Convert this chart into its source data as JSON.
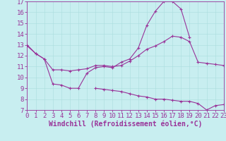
{
  "xlabel": "Windchill (Refroidissement éolien,°C)",
  "ylabel": "",
  "background_color": "#c8eef0",
  "line_color": "#993399",
  "xmin": 0,
  "xmax": 23,
  "ymin": 7,
  "ymax": 17,
  "line1_x": [
    0,
    1,
    2,
    3,
    4,
    5,
    6,
    7,
    8,
    9,
    10,
    11,
    12,
    13,
    14,
    15,
    16,
    17,
    18,
    19,
    20,
    21,
    22,
    23
  ],
  "line1_y": [
    13.0,
    12.2,
    11.7,
    10.7,
    10.7,
    10.6,
    10.7,
    10.8,
    11.1,
    11.1,
    11.0,
    11.1,
    11.5,
    12.0,
    12.6,
    12.9,
    13.3,
    13.8,
    13.7,
    13.3,
    11.4,
    11.3,
    11.2,
    11.1
  ],
  "line2_x": [
    0,
    1,
    2,
    3,
    4,
    5,
    6,
    7,
    8,
    9,
    10,
    11,
    12,
    13,
    14,
    15,
    16,
    17,
    18,
    19,
    20,
    21,
    22,
    23
  ],
  "line2_y": [
    12.9,
    12.2,
    11.7,
    9.4,
    9.3,
    9.0,
    9.0,
    10.4,
    10.9,
    11.0,
    10.9,
    11.4,
    11.7,
    12.7,
    14.8,
    16.1,
    17.0,
    17.0,
    16.3,
    13.7,
    null,
    null,
    null,
    null
  ],
  "line3_x": [
    0,
    1,
    2,
    3,
    4,
    5,
    6,
    7,
    8,
    9,
    10,
    11,
    12,
    13,
    14,
    15,
    16,
    17,
    18,
    19,
    20,
    21,
    22,
    23
  ],
  "line3_y": [
    null,
    null,
    null,
    null,
    null,
    null,
    null,
    null,
    9.0,
    8.9,
    8.8,
    8.7,
    8.5,
    8.3,
    8.2,
    8.0,
    8.0,
    7.9,
    7.8,
    7.8,
    7.6,
    7.0,
    7.4,
    7.5
  ],
  "tick_fontsize": 6.5,
  "label_fontsize": 7,
  "grid_color": "#aadddd"
}
